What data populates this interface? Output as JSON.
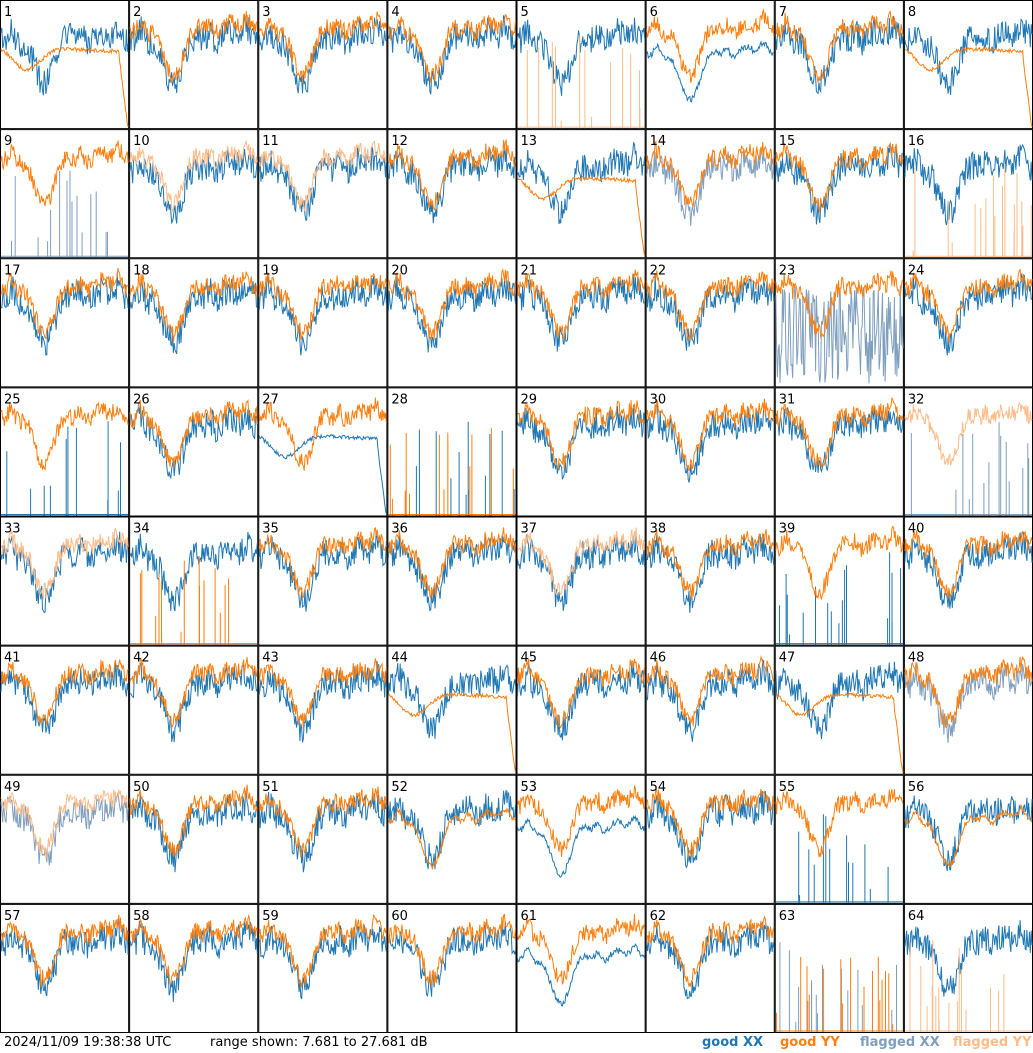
{
  "chart_data": {
    "type": "line",
    "layout_grid": {
      "columns": 8,
      "rows": 8
    },
    "units": "dB",
    "range_shown_db": [
      7.681,
      27.681
    ],
    "panels": [
      {
        "label": "1",
        "xx": "good",
        "yy": "good",
        "xx_shape": "normal",
        "yy_shape": "dip"
      },
      {
        "label": "2",
        "xx": "good",
        "yy": "good",
        "xx_shape": "normal",
        "yy_shape": "normal"
      },
      {
        "label": "3",
        "xx": "good",
        "yy": "good",
        "xx_shape": "normal",
        "yy_shape": "normal"
      },
      {
        "label": "4",
        "xx": "good",
        "yy": "good",
        "xx_shape": "normal",
        "yy_shape": "normal"
      },
      {
        "label": "5",
        "xx": "good",
        "yy": "flagged",
        "xx_shape": "normal",
        "yy_shape": "spikes"
      },
      {
        "label": "6",
        "xx": "good",
        "yy": "good",
        "xx_shape": "smooth",
        "yy_shape": "normal"
      },
      {
        "label": "7",
        "xx": "good",
        "yy": "good",
        "xx_shape": "normal",
        "yy_shape": "normal"
      },
      {
        "label": "8",
        "xx": "good",
        "yy": "good",
        "xx_shape": "normal",
        "yy_shape": "dip"
      },
      {
        "label": "9",
        "xx": "flagged",
        "yy": "good",
        "xx_shape": "spikes",
        "yy_shape": "normal"
      },
      {
        "label": "10",
        "xx": "good",
        "yy": "flagged",
        "xx_shape": "normal",
        "yy_shape": "normal"
      },
      {
        "label": "11",
        "xx": "good",
        "yy": "flagged",
        "xx_shape": "normal",
        "yy_shape": "normal"
      },
      {
        "label": "12",
        "xx": "good",
        "yy": "good",
        "xx_shape": "normal",
        "yy_shape": "normal"
      },
      {
        "label": "13",
        "xx": "good",
        "yy": "good",
        "xx_shape": "normal",
        "yy_shape": "dip"
      },
      {
        "label": "14",
        "xx": "flagged",
        "yy": "good",
        "xx_shape": "normal",
        "yy_shape": "normal"
      },
      {
        "label": "15",
        "xx": "good",
        "yy": "good",
        "xx_shape": "normal",
        "yy_shape": "normal"
      },
      {
        "label": "16",
        "xx": "good",
        "yy": "flagged",
        "xx_shape": "normal",
        "yy_shape": "spikes"
      },
      {
        "label": "17",
        "xx": "good",
        "yy": "good",
        "xx_shape": "normal",
        "yy_shape": "normal"
      },
      {
        "label": "18",
        "xx": "good",
        "yy": "good",
        "xx_shape": "normal",
        "yy_shape": "normal"
      },
      {
        "label": "19",
        "xx": "good",
        "yy": "good",
        "xx_shape": "normal",
        "yy_shape": "normal"
      },
      {
        "label": "20",
        "xx": "good",
        "yy": "good",
        "xx_shape": "normal",
        "yy_shape": "normal"
      },
      {
        "label": "21",
        "xx": "good",
        "yy": "good",
        "xx_shape": "normal",
        "yy_shape": "normal"
      },
      {
        "label": "22",
        "xx": "good",
        "yy": "good",
        "xx_shape": "normal",
        "yy_shape": "normal"
      },
      {
        "label": "23",
        "xx": "flagged",
        "yy": "good",
        "xx_shape": "noisy",
        "yy_shape": "normal"
      },
      {
        "label": "24",
        "xx": "good",
        "yy": "good",
        "xx_shape": "normal",
        "yy_shape": "normal"
      },
      {
        "label": "25",
        "xx": "good",
        "yy": "good",
        "xx_shape": "spikes",
        "yy_shape": "normal"
      },
      {
        "label": "26",
        "xx": "good",
        "yy": "good",
        "xx_shape": "normal",
        "yy_shape": "normal"
      },
      {
        "label": "27",
        "xx": "good",
        "yy": "good",
        "xx_shape": "dip",
        "yy_shape": "normal"
      },
      {
        "label": "28",
        "xx": "good",
        "yy": "good",
        "xx_shape": "spikes",
        "yy_shape": "spikes"
      },
      {
        "label": "29",
        "xx": "good",
        "yy": "good",
        "xx_shape": "normal",
        "yy_shape": "normal"
      },
      {
        "label": "30",
        "xx": "good",
        "yy": "good",
        "xx_shape": "normal",
        "yy_shape": "normal"
      },
      {
        "label": "31",
        "xx": "good",
        "yy": "good",
        "xx_shape": "normal",
        "yy_shape": "normal"
      },
      {
        "label": "32",
        "xx": "flagged",
        "yy": "flagged",
        "xx_shape": "spikes",
        "yy_shape": "normal"
      },
      {
        "label": "33",
        "xx": "good",
        "yy": "flagged",
        "xx_shape": "normal",
        "yy_shape": "normal"
      },
      {
        "label": "34",
        "xx": "good",
        "yy": "good",
        "xx_shape": "normal",
        "yy_shape": "spikes"
      },
      {
        "label": "35",
        "xx": "good",
        "yy": "good",
        "xx_shape": "normal",
        "yy_shape": "normal"
      },
      {
        "label": "36",
        "xx": "good",
        "yy": "good",
        "xx_shape": "normal",
        "yy_shape": "normal"
      },
      {
        "label": "37",
        "xx": "good",
        "yy": "flagged",
        "xx_shape": "normal",
        "yy_shape": "normal"
      },
      {
        "label": "38",
        "xx": "good",
        "yy": "good",
        "xx_shape": "normal",
        "yy_shape": "normal"
      },
      {
        "label": "39",
        "xx": "good",
        "yy": "good",
        "xx_shape": "spikes",
        "yy_shape": "normal"
      },
      {
        "label": "40",
        "xx": "good",
        "yy": "good",
        "xx_shape": "normal",
        "yy_shape": "normal"
      },
      {
        "label": "41",
        "xx": "good",
        "yy": "good",
        "xx_shape": "normal",
        "yy_shape": "normal"
      },
      {
        "label": "42",
        "xx": "good",
        "yy": "good",
        "xx_shape": "normal",
        "yy_shape": "normal"
      },
      {
        "label": "43",
        "xx": "good",
        "yy": "good",
        "xx_shape": "normal",
        "yy_shape": "normal"
      },
      {
        "label": "44",
        "xx": "good",
        "yy": "good",
        "xx_shape": "normal",
        "yy_shape": "dip"
      },
      {
        "label": "45",
        "xx": "good",
        "yy": "good",
        "xx_shape": "normal",
        "yy_shape": "normal"
      },
      {
        "label": "46",
        "xx": "good",
        "yy": "good",
        "xx_shape": "normal",
        "yy_shape": "normal"
      },
      {
        "label": "47",
        "xx": "good",
        "yy": "good",
        "xx_shape": "normal",
        "yy_shape": "dip"
      },
      {
        "label": "48",
        "xx": "flagged",
        "yy": "good",
        "xx_shape": "normal",
        "yy_shape": "normal"
      },
      {
        "label": "49",
        "xx": "flagged",
        "yy": "flagged",
        "xx_shape": "normal",
        "yy_shape": "normal"
      },
      {
        "label": "50",
        "xx": "good",
        "yy": "good",
        "xx_shape": "normal",
        "yy_shape": "normal"
      },
      {
        "label": "51",
        "xx": "good",
        "yy": "good",
        "xx_shape": "normal",
        "yy_shape": "normal"
      },
      {
        "label": "52",
        "xx": "good",
        "yy": "good",
        "xx_shape": "normal",
        "yy_shape": "smooth"
      },
      {
        "label": "53",
        "xx": "good",
        "yy": "good",
        "xx_shape": "smooth",
        "yy_shape": "normal"
      },
      {
        "label": "54",
        "xx": "good",
        "yy": "good",
        "xx_shape": "normal",
        "yy_shape": "normal"
      },
      {
        "label": "55",
        "xx": "good",
        "yy": "good",
        "xx_shape": "spikes",
        "yy_shape": "normal"
      },
      {
        "label": "56",
        "xx": "good",
        "yy": "good",
        "xx_shape": "normal",
        "yy_shape": "smooth"
      },
      {
        "label": "57",
        "xx": "good",
        "yy": "good",
        "xx_shape": "normal",
        "yy_shape": "normal"
      },
      {
        "label": "58",
        "xx": "good",
        "yy": "good",
        "xx_shape": "normal",
        "yy_shape": "normal"
      },
      {
        "label": "59",
        "xx": "good",
        "yy": "good",
        "xx_shape": "normal",
        "yy_shape": "normal"
      },
      {
        "label": "60",
        "xx": "good",
        "yy": "good",
        "xx_shape": "normal",
        "yy_shape": "normal"
      },
      {
        "label": "61",
        "xx": "good",
        "yy": "good",
        "xx_shape": "smooth",
        "yy_shape": "normal"
      },
      {
        "label": "62",
        "xx": "good",
        "yy": "good",
        "xx_shape": "normal",
        "yy_shape": "normal"
      },
      {
        "label": "63",
        "xx": "flagged",
        "yy": "good",
        "xx_shape": "spikes",
        "yy_shape": "spikes"
      },
      {
        "label": "64",
        "xx": "good",
        "yy": "flagged",
        "xx_shape": "normal",
        "yy_shape": "spikes"
      }
    ],
    "legend": [
      {
        "label": "good XX",
        "color": "#1f77b4"
      },
      {
        "label": "good YY",
        "color": "#ff7f0e"
      },
      {
        "label": "flagged XX",
        "color": "#7f9fbf"
      },
      {
        "label": "flagged YY",
        "color": "#ffbb88"
      }
    ],
    "legend_placement": "bottom-right",
    "grid": false
  },
  "footer": {
    "timestamp": "2024/11/09 19:38:38 UTC",
    "range_text": "range shown: 7.681 to 27.681 dB"
  }
}
